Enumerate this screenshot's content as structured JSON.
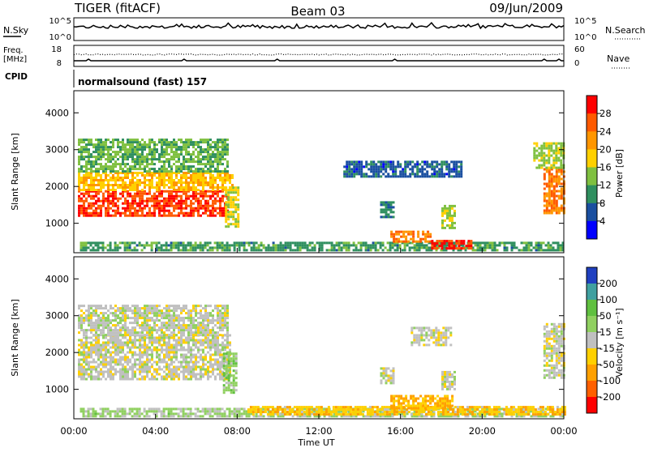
{
  "header": {
    "radar": "TIGER (fitACF)",
    "beam": "Beam 03",
    "date": "09/Jun/2009"
  },
  "top_panels": {
    "nsky_label": "N.Sky",
    "nsky_ticks": [
      "10^5",
      "10^0"
    ],
    "nsearch_label": "N.Search",
    "nsearch_ticks": [
      "10^5",
      "10^0"
    ],
    "freq_label": "Freq.",
    "freq_unit": "[MHz]",
    "freq_ticks": [
      "18",
      "8"
    ],
    "nave_label": "Nave",
    "nave_ticks": [
      "60",
      "0"
    ],
    "cpid_label": "CPID",
    "cpid_value": "normalsound (fast) 157"
  },
  "power_colorbar": {
    "label": "Power [dB]",
    "ticks": [
      "28",
      "24",
      "20",
      "16",
      "12",
      "8",
      "4"
    ],
    "colors": [
      "#ff0000",
      "#ff5a00",
      "#ff9600",
      "#ffd000",
      "#7fc040",
      "#2f8f5f",
      "#1a4fa0",
      "#0000ff"
    ]
  },
  "velocity_colorbar": {
    "label": "Velocity [m s⁻¹]",
    "ticks": [
      "200",
      "100",
      "50",
      "15",
      "-15",
      "-50",
      "-100",
      "-200"
    ],
    "colors": [
      "#2040c0",
      "#40a0a0",
      "#60c040",
      "#90d060",
      "#c0c0c0",
      "#ffd000",
      "#ffa000",
      "#ff6000",
      "#ff0000"
    ]
  },
  "chart_data": [
    {
      "type": "heatmap",
      "title": "Power",
      "xlabel": "Time UT",
      "ylabel": "Slant Range [km]",
      "xticks": [
        "00:00",
        "04:00",
        "08:00",
        "12:00",
        "16:00",
        "20:00",
        "00:00"
      ],
      "xlim_hours": [
        0,
        24
      ],
      "ylim": [
        200,
        4600
      ],
      "yticks": [
        1000,
        2000,
        3000,
        4000
      ],
      "clim": [
        0,
        30
      ],
      "regions": [
        {
          "t0": 0.2,
          "t1": 7.5,
          "r0": 1200,
          "r1": 1900,
          "value": 26
        },
        {
          "t0": 0.2,
          "t1": 7.8,
          "r0": 1900,
          "r1": 2400,
          "value": 18
        },
        {
          "t0": 0.2,
          "t1": 7.5,
          "r0": 2400,
          "r1": 3300,
          "value": 12
        },
        {
          "t0": 7.4,
          "t1": 8.0,
          "r0": 900,
          "r1": 2000,
          "value": 16
        },
        {
          "t0": 0.3,
          "t1": 24.0,
          "r0": 250,
          "r1": 500,
          "value": 10
        },
        {
          "t0": 15.5,
          "t1": 17.5,
          "r0": 500,
          "r1": 800,
          "value": 22
        },
        {
          "t0": 17.5,
          "t1": 19.5,
          "r0": 350,
          "r1": 550,
          "value": 27
        },
        {
          "t0": 18.0,
          "t1": 18.6,
          "r0": 900,
          "r1": 1500,
          "value": 14
        },
        {
          "t0": 15.0,
          "t1": 15.6,
          "r0": 1200,
          "r1": 1600,
          "value": 8
        },
        {
          "t0": 13.2,
          "t1": 19.0,
          "r0": 2300,
          "r1": 2700,
          "value": 6
        },
        {
          "t0": 23.0,
          "t1": 24.0,
          "r0": 1300,
          "r1": 2500,
          "value": 22
        },
        {
          "t0": 22.5,
          "t1": 24.0,
          "r0": 2500,
          "r1": 3200,
          "value": 14
        }
      ]
    },
    {
      "type": "heatmap",
      "title": "Velocity",
      "xlabel": "Time UT",
      "ylabel": "Slant Range [km]",
      "xticks": [
        "00:00",
        "04:00",
        "08:00",
        "12:00",
        "16:00",
        "20:00",
        "00:00"
      ],
      "xlim_hours": [
        0,
        24
      ],
      "ylim": [
        200,
        4600
      ],
      "yticks": [
        1000,
        2000,
        3000,
        4000
      ],
      "clim": [
        -250,
        250
      ],
      "regions": [
        {
          "t0": 0.2,
          "t1": 7.6,
          "r0": 1300,
          "r1": 2500,
          "value": 0
        },
        {
          "t0": 0.2,
          "t1": 7.5,
          "r0": 2500,
          "r1": 3300,
          "value": 5
        },
        {
          "t0": 7.3,
          "t1": 8.0,
          "r0": 900,
          "r1": 2000,
          "value": 60
        },
        {
          "t0": 0.3,
          "t1": 24.0,
          "r0": 250,
          "r1": 500,
          "value": 40
        },
        {
          "t0": 8.5,
          "t1": 24.0,
          "r0": 350,
          "r1": 550,
          "value": -70
        },
        {
          "t0": 15.5,
          "t1": 18.5,
          "r0": 500,
          "r1": 850,
          "value": -90
        },
        {
          "t0": 18.0,
          "t1": 18.6,
          "r0": 1000,
          "r1": 1500,
          "value": 0
        },
        {
          "t0": 15.0,
          "t1": 15.6,
          "r0": 1200,
          "r1": 1600,
          "value": 0
        },
        {
          "t0": 16.5,
          "t1": 18.5,
          "r0": 2200,
          "r1": 2700,
          "value": 0
        },
        {
          "t0": 23.0,
          "t1": 24.0,
          "r0": 1300,
          "r1": 2800,
          "value": 0
        }
      ]
    }
  ]
}
